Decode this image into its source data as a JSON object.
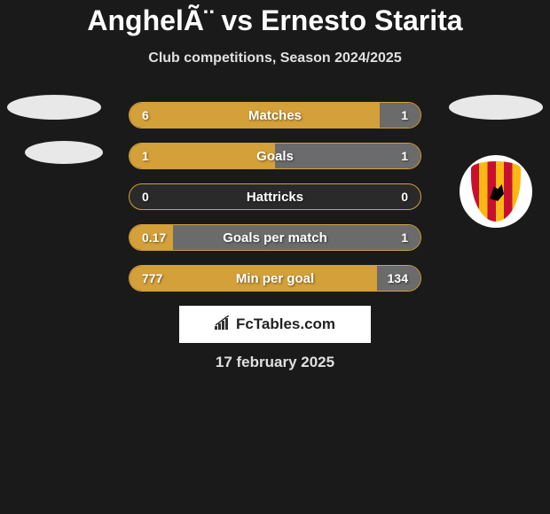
{
  "title": "AnghelÃ¨ vs Ernesto Starita",
  "subtitle": "Club competitions, Season 2024/2025",
  "logo_text": "FcTables.com",
  "date": "17 february 2025",
  "colors": {
    "background": "#1a1a1a",
    "bar_left": "#d4a039",
    "bar_right": "#6b6b6b",
    "bar_border": "#d4a039",
    "text": "#ffffff",
    "avatar": "#e8e8e8",
    "logo_bg": "#ffffff"
  },
  "stats": [
    {
      "name": "Matches",
      "left_value": "6",
      "right_value": "1",
      "left_pct": 86,
      "right_pct": 14
    },
    {
      "name": "Goals",
      "left_value": "1",
      "right_value": "1",
      "left_pct": 50,
      "right_pct": 50
    },
    {
      "name": "Hattricks",
      "left_value": "0",
      "right_value": "0",
      "left_pct": 0,
      "right_pct": 0
    },
    {
      "name": "Goals per match",
      "left_value": "0.17",
      "right_value": "1",
      "left_pct": 15,
      "right_pct": 85
    },
    {
      "name": "Min per goal",
      "left_value": "777",
      "right_value": "134",
      "left_pct": 85,
      "right_pct": 15
    }
  ]
}
